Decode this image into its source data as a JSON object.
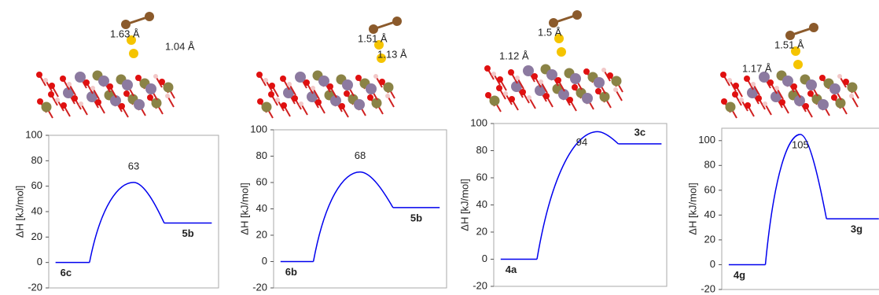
{
  "chart_data": [
    {
      "type": "profile",
      "ylabel": "ΔH [kJ/mol]",
      "categories": [
        "6c",
        null,
        "5b"
      ],
      "values": [
        0,
        63,
        31
      ],
      "color": "#0000ee",
      "label_color": "#1a7fd1",
      "ylim": [
        -20,
        100
      ],
      "yticks": [
        -20,
        0,
        20,
        40,
        60,
        80,
        100
      ]
    },
    {
      "type": "profile",
      "ylabel": "ΔH [kJ/mol]",
      "categories": [
        "6b",
        null,
        "5b"
      ],
      "values": [
        0,
        68,
        41
      ],
      "color": "#0000ee",
      "label_color": "#1a7fd1",
      "ylim": [
        -20,
        100
      ],
      "yticks": [
        -20,
        0,
        20,
        40,
        60,
        80,
        100
      ]
    },
    {
      "type": "profile",
      "ylabel": "ΔH [kJ/mol]",
      "categories": [
        "4a",
        null,
        "3c"
      ],
      "values": [
        0,
        94,
        85
      ],
      "color": "#0000ee",
      "label_color": "#1a7fd1",
      "ylim": [
        -20,
        100
      ],
      "yticks": [
        -20,
        0,
        20,
        40,
        60,
        80,
        100
      ]
    },
    {
      "type": "profile",
      "ylabel": "ΔH [kJ/mol]",
      "categories": [
        "4g",
        null,
        "3g"
      ],
      "values": [
        0,
        105,
        37
      ],
      "color": "#0000ee",
      "label_color": "#1a7fd1",
      "ylim": [
        -20,
        110
      ],
      "yticks": [
        -20,
        0,
        20,
        40,
        60,
        80,
        100
      ]
    }
  ],
  "structures": [
    {
      "distances": [
        "1.63 Å",
        "1.04 Å"
      ]
    },
    {
      "distances": [
        "1.51 Å",
        "1.13 Å"
      ]
    },
    {
      "distances": [
        "1.5 Å",
        "1.12 Å"
      ]
    },
    {
      "distances": [
        "1.51 Å",
        "1.17 Å"
      ]
    }
  ]
}
